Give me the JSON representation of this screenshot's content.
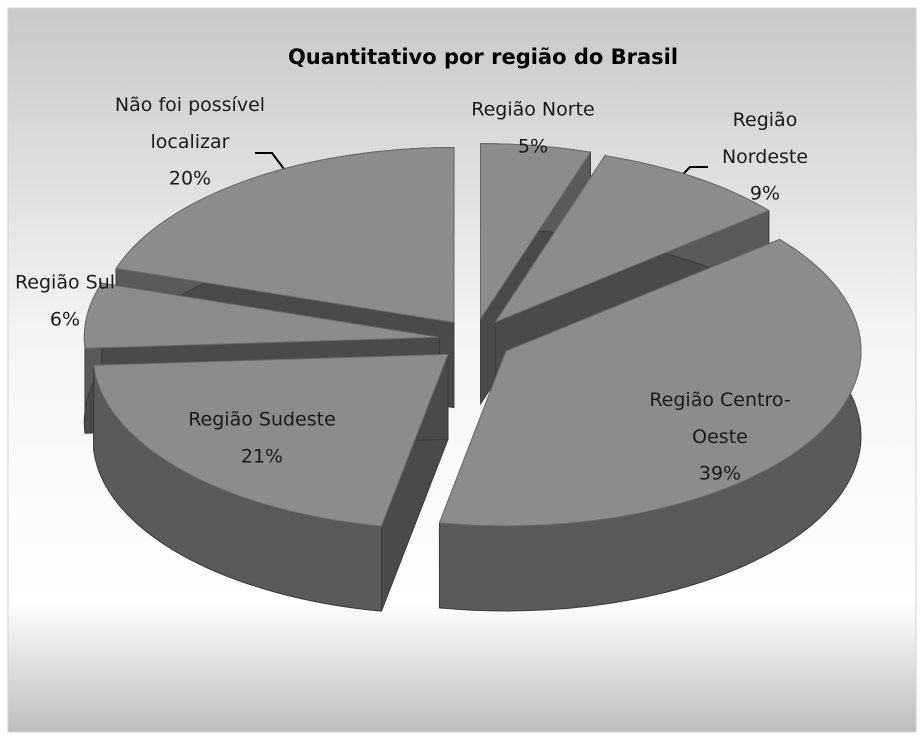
{
  "chart_data": {
    "type": "pie",
    "title": "Quantitativo por região do Brasil",
    "categories": [
      "Região Norte",
      "Região Nordeste",
      "Região Centro-Oeste",
      "Região Sudeste",
      "Região Sul",
      "Não foi possível localizar"
    ],
    "values": [
      5,
      9,
      39,
      21,
      6,
      20
    ],
    "value_labels": [
      "5%",
      "9%",
      "39%",
      "21%",
      "6%",
      "20%"
    ],
    "color": "#8c8c8c"
  }
}
